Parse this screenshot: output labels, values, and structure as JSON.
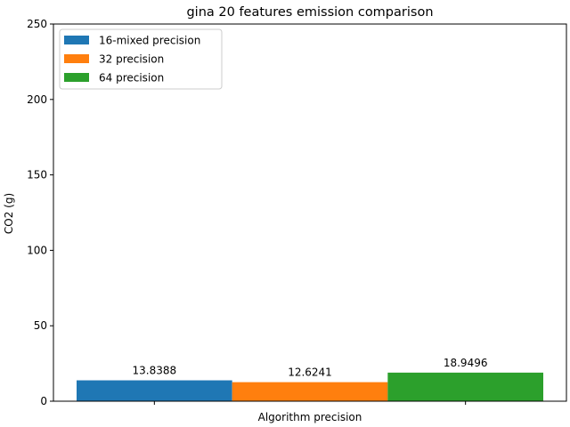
{
  "chart_data": {
    "type": "bar",
    "title": "gina 20 features emission comparison",
    "xlabel": "Algorithm precision",
    "ylabel": "CO2 (g)",
    "ylim": [
      0,
      250
    ],
    "yticks": [
      0,
      50,
      100,
      150,
      200,
      250
    ],
    "grid": false,
    "legend_position": "top-left",
    "series": [
      {
        "name": "16-mixed precision",
        "values": [
          13.8388
        ],
        "label": "13.8388",
        "color": "#1f77b4"
      },
      {
        "name": "32 precision",
        "values": [
          12.6241
        ],
        "label": "12.6241",
        "color": "#ff7f0e"
      },
      {
        "name": "64 precision",
        "values": [
          18.9496
        ],
        "label": "18.9496",
        "color": "#2ca02c"
      }
    ]
  }
}
